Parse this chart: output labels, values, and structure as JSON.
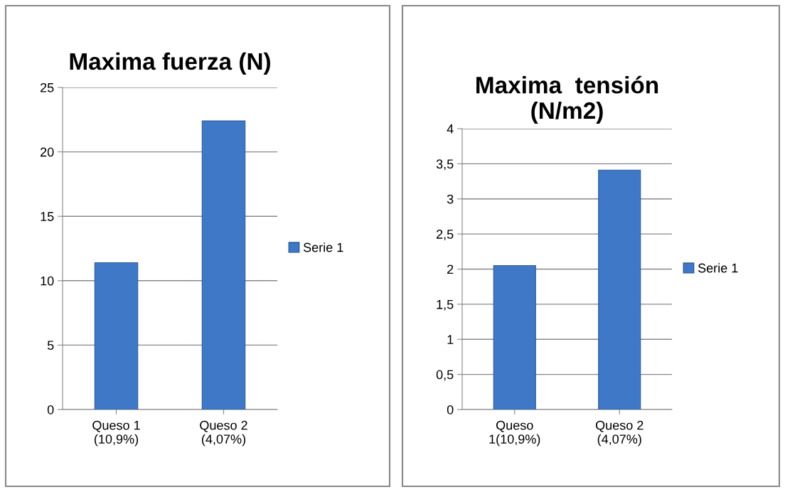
{
  "chart_data": [
    {
      "type": "bar",
      "title": "Maxima fuerza (N)",
      "categories": [
        "Queso 1\n(10,9%)",
        "Queso 2\n(4,07%)"
      ],
      "series": [
        {
          "name": "Serie 1",
          "color": "#3f78c6",
          "values": [
            11.4,
            22.4
          ]
        }
      ],
      "ylim": [
        0,
        25
      ],
      "yticks": [
        0,
        5,
        10,
        15,
        20,
        25
      ],
      "grid": "y",
      "legend": "right"
    },
    {
      "type": "bar",
      "title": "Maxima  tensión\n(N/m2)",
      "categories": [
        "Queso\n1(10,9%)",
        "Queso 2\n(4,07%)"
      ],
      "series": [
        {
          "name": "Serie 1",
          "color": "#3f78c6",
          "values": [
            2.05,
            3.41
          ]
        }
      ],
      "ylim": [
        0,
        4
      ],
      "yticks": [
        0,
        {
          "value": 0.5,
          "label": "0,5"
        },
        1,
        {
          "value": 1.5,
          "label": "1,5"
        },
        2,
        {
          "value": 2.5,
          "label": "2,5"
        },
        3,
        {
          "value": 3.5,
          "label": "3,5"
        },
        4
      ],
      "grid": "y",
      "legend": "right"
    }
  ]
}
